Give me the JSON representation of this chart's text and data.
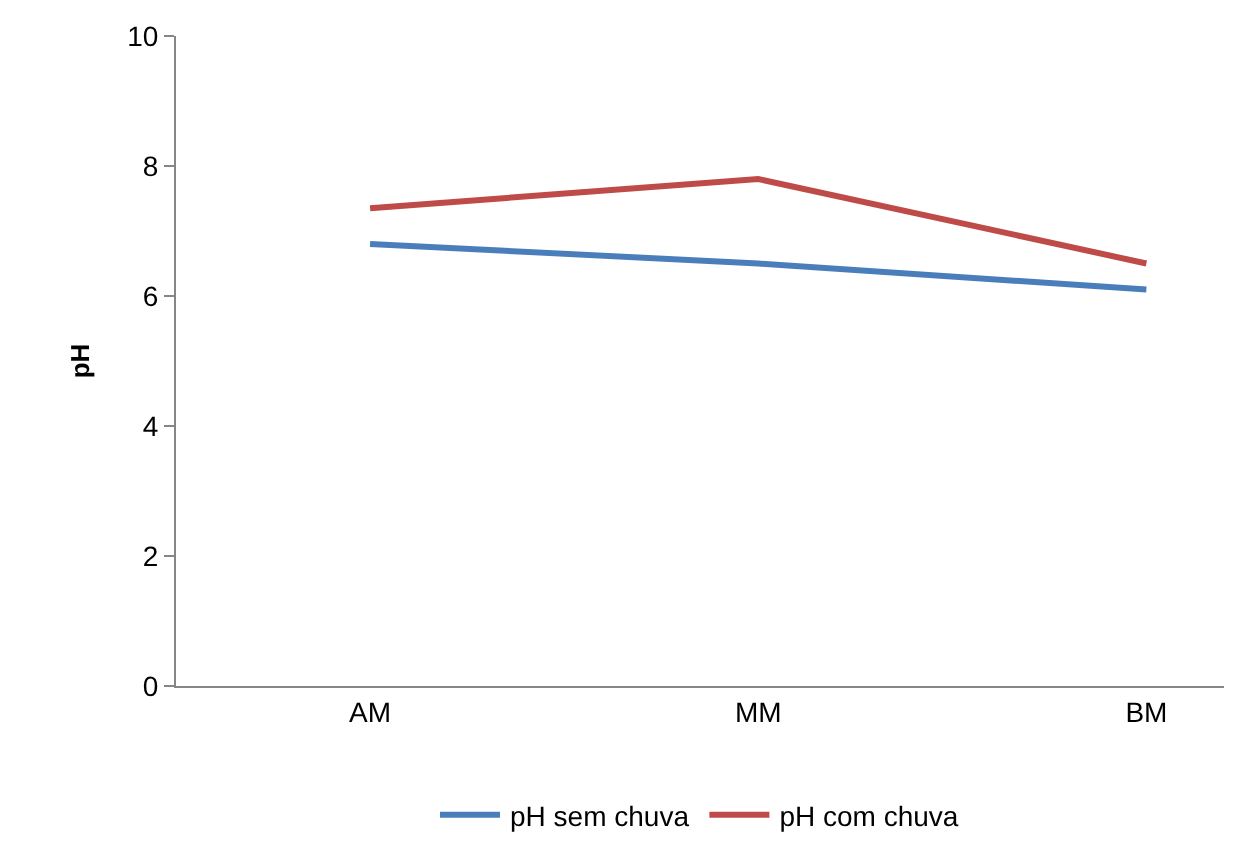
{
  "chart_data": {
    "type": "line",
    "ylabel": "pH",
    "categories": [
      "AM",
      "MM",
      "BM"
    ],
    "series": [
      {
        "name": "pH sem chuva",
        "color": "#4a7ebb",
        "values": [
          6.8,
          6.5,
          6.1
        ]
      },
      {
        "name": "pH com chuva",
        "color": "#be4b48",
        "values": [
          7.35,
          7.8,
          6.5
        ]
      }
    ],
    "ylim": [
      0,
      10
    ],
    "yticks": [
      0,
      2,
      4,
      6,
      8,
      10
    ],
    "legend": "bottom",
    "marker": "none",
    "line_style": "solid"
  }
}
